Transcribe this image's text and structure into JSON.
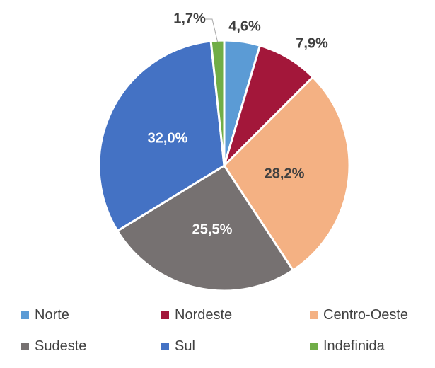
{
  "chart_data": {
    "type": "pie",
    "title": "",
    "slices": [
      {
        "name": "Norte",
        "value": 4.6,
        "label": "4,6%",
        "color": "#5B9BD5",
        "label_color": "#404040"
      },
      {
        "name": "Nordeste",
        "value": 7.9,
        "label": "7,9%",
        "color": "#A3173A",
        "label_color": "#404040"
      },
      {
        "name": "Centro-Oeste",
        "value": 28.2,
        "label": "28,2%",
        "color": "#F4B183",
        "label_color": "#404040"
      },
      {
        "name": "Sudeste",
        "value": 25.5,
        "label": "25,5%",
        "color": "#767171",
        "label_color": "#ffffff"
      },
      {
        "name": "Sul",
        "value": 32.0,
        "label": "32,0%",
        "color": "#4472C4",
        "label_color": "#ffffff"
      },
      {
        "name": "Indefinida",
        "value": 1.7,
        "label": "1,7%",
        "color": "#70AD47",
        "label_color": "#404040"
      }
    ],
    "legend_position": "bottom"
  }
}
